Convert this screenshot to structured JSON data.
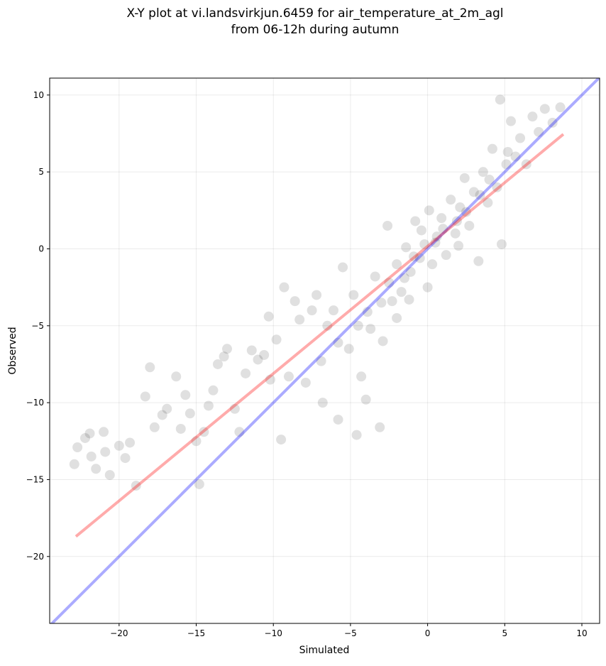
{
  "chart_data": {
    "type": "scatter",
    "title": [
      "X-Y plot at vi.landsvirkjun.6459 for air_temperature_at_2m_agl",
      "from 06-12h during autumn"
    ],
    "xlabel": "Simulated",
    "ylabel": "Observed",
    "xlim": [
      -24.5,
      11.15
    ],
    "ylim": [
      -24.35,
      11.1
    ],
    "xticks": [
      {
        "value": -20,
        "label": "−20"
      },
      {
        "value": -15,
        "label": "−15"
      },
      {
        "value": -10,
        "label": "−10"
      },
      {
        "value": -5,
        "label": "−5"
      },
      0,
      5,
      10
    ],
    "yticks": [
      {
        "value": -20,
        "label": "−20"
      },
      {
        "value": -15,
        "label": "−15"
      },
      {
        "value": -10,
        "label": "−10"
      },
      {
        "value": -5,
        "label": "−5"
      },
      0,
      5,
      10
    ],
    "grid": true,
    "color": "#000000",
    "x": [
      -22.7,
      -22.2,
      -21.9,
      -21.8,
      -21.5,
      -22.9,
      -21,
      -20.9,
      -20.6,
      -20,
      -19.6,
      -19.3,
      -18.9,
      -18.3,
      -18,
      -17.7,
      -17.2,
      -16.9,
      -16.3,
      -16,
      -15.7,
      -15.4,
      -15,
      -14.8,
      -14.5,
      -14.2,
      -13.9,
      -13.6,
      -13.2,
      -13,
      -12.5,
      -12.2,
      -11.8,
      -11.4,
      -11,
      -10.6,
      -10.3,
      -10.2,
      -9.8,
      -9.5,
      -9.3,
      -9,
      -8.6,
      -8.3,
      -7.9,
      -7.5,
      -7.2,
      -6.8,
      -6.5,
      -6.1,
      -5.8,
      -5.5,
      -5.1,
      -4.8,
      -4.6,
      -4.3,
      -4,
      -3.7,
      -3.4,
      -3.1,
      -2.9,
      -2.6,
      -2.3,
      -2,
      -1.7,
      -1.4,
      -1.1,
      -0.8,
      -0.5,
      -0.2,
      0.1,
      0.3,
      0.6,
      0.9,
      1.2,
      1.5,
      1.8,
      2.1,
      2.4,
      2.7,
      3,
      3.3,
      3.6,
      3.9,
      4.2,
      4.5,
      4.8,
      5.1,
      5.4,
      5.7,
      6,
      6.4,
      6.8,
      7.2,
      7.6,
      8.1,
      8.6,
      4.7,
      -3.9,
      -2.5,
      -1.5,
      -0.9,
      0.5,
      1,
      -3,
      -2,
      1.9,
      2.5,
      3.4,
      -4.5,
      -5.8,
      -6.9,
      -1.2,
      0,
      2,
      -0.4,
      4,
      5.2
    ],
    "y": [
      -12.9,
      -12.3,
      -12,
      -13.5,
      -14.3,
      -14,
      -11.9,
      -13.2,
      -14.7,
      -12.8,
      -13.6,
      -12.6,
      -15.4,
      -9.6,
      -7.7,
      -11.6,
      -10.8,
      -10.4,
      -8.3,
      -11.7,
      -9.5,
      -10.7,
      -12.5,
      -15.3,
      -11.9,
      -10.2,
      -9.2,
      -7.5,
      -7,
      -6.5,
      -10.4,
      -11.9,
      -8.1,
      -6.6,
      -7.2,
      -6.9,
      -4.4,
      -8.5,
      -5.9,
      -12.4,
      -2.5,
      -8.3,
      -3.4,
      -4.6,
      -8.7,
      -4,
      -3,
      -10,
      -5,
      -4,
      -11.1,
      -1.2,
      -6.5,
      -3,
      -12.1,
      -8.3,
      -9.8,
      -5.2,
      -1.8,
      -11.6,
      -6,
      1.5,
      -3.4,
      -1,
      -2.8,
      0.1,
      -1.5,
      1.8,
      -0.6,
      0.3,
      2.5,
      -1,
      0.8,
      2,
      -0.4,
      3.2,
      1,
      2.7,
      4.6,
      1.5,
      3.7,
      -0.8,
      5,
      3,
      6.5,
      4,
      0.3,
      5.5,
      8.3,
      6,
      7.2,
      5.5,
      8.6,
      7.6,
      9.1,
      8.2,
      9.2,
      9.7,
      -4.1,
      -2.2,
      -1.9,
      -0.5,
      0.4,
      1.3,
      -3.5,
      -4.5,
      1.8,
      2.4,
      3.5,
      -5,
      -6.1,
      -7.3,
      -3.3,
      -2.5,
      0.2,
      1.2,
      4.5,
      6.3
    ],
    "reference_lines": [
      {
        "color": "#0000ff",
        "x": [
          -24.5,
          11.15
        ],
        "y": [
          -24.5,
          11.15
        ]
      },
      {
        "color": "#ff0000",
        "x": [
          -22.8,
          8.8
        ],
        "y": [
          -18.7,
          7.45
        ]
      }
    ]
  }
}
